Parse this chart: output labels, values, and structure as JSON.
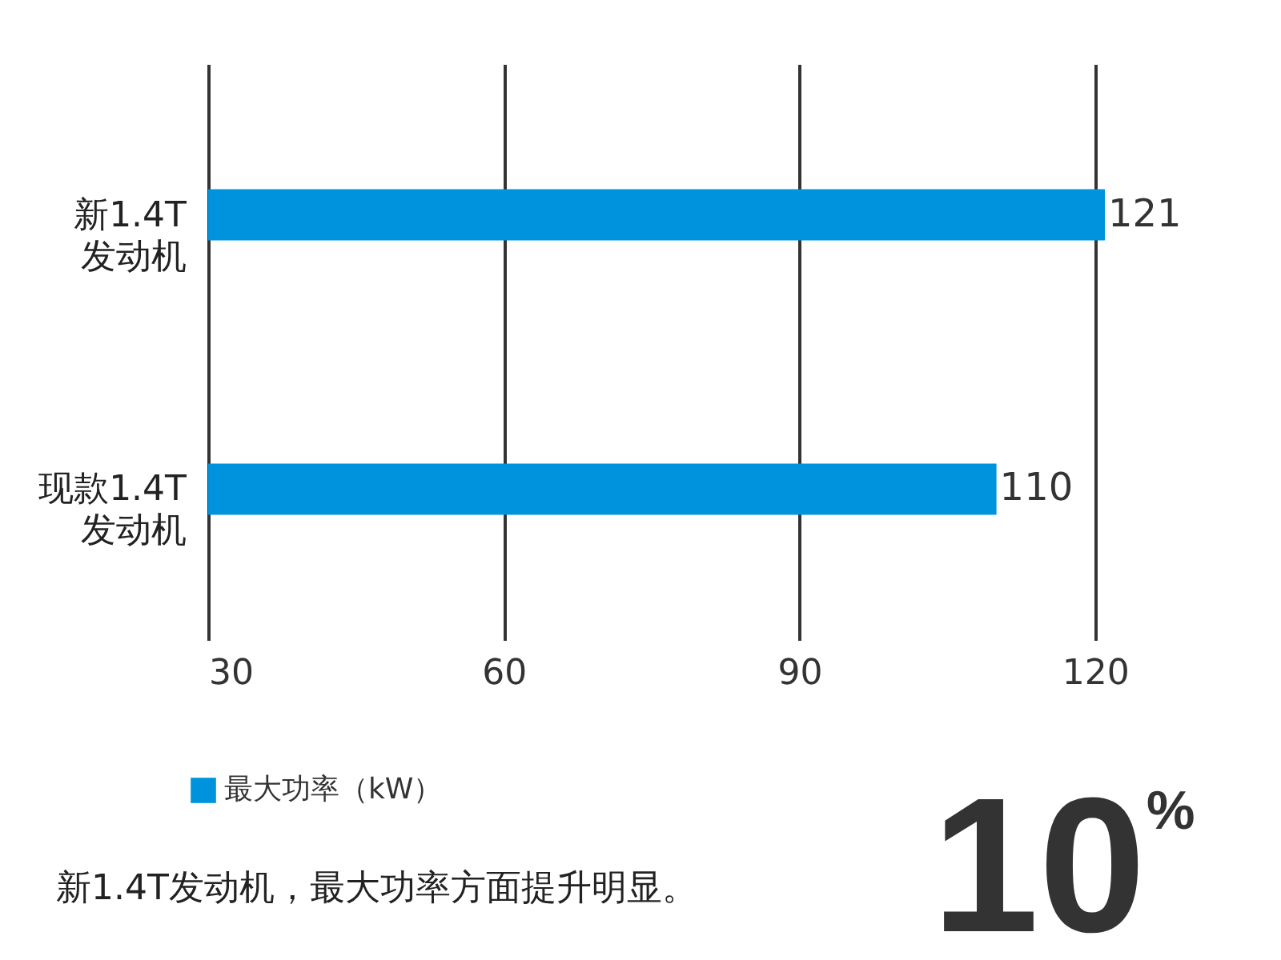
{
  "chart_data": {
    "type": "bar",
    "orientation": "horizontal",
    "categories": [
      "新1.4T发动机",
      "现款1.4T发动机"
    ],
    "series": [
      {
        "name": "最大功率（kW）",
        "color": "#0093dd",
        "values": [
          121,
          110
        ]
      }
    ],
    "xlim": [
      30,
      121
    ],
    "xticks": [
      30,
      60,
      90,
      120
    ],
    "grid": "x",
    "legend": "bottom left",
    "data_labels": true,
    "annotations": [
      "新1.4T发动机，最大功率方面提升明显。",
      "10%"
    ]
  }
}
